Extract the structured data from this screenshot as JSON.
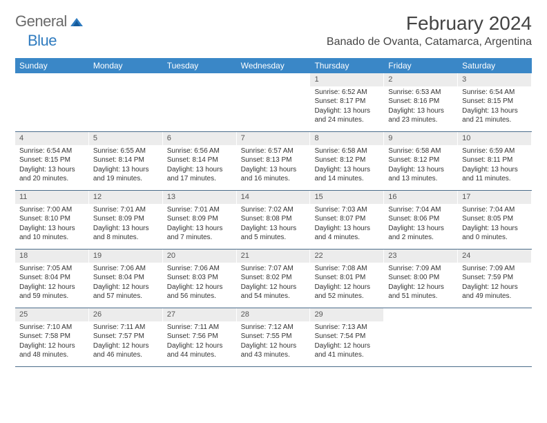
{
  "brand": {
    "general": "General",
    "blue": "Blue"
  },
  "title": "February 2024",
  "location": "Banado de Ovanta, Catamarca, Argentina",
  "colors": {
    "header_bg": "#3a87c7",
    "header_text": "#ffffff",
    "daynum_bg": "#ececec",
    "row_border": "#4a6c8a",
    "brand_gray": "#6a6a6a",
    "brand_blue": "#2f7bbf"
  },
  "weekdays": [
    "Sunday",
    "Monday",
    "Tuesday",
    "Wednesday",
    "Thursday",
    "Friday",
    "Saturday"
  ],
  "weeks": [
    [
      {
        "empty": true
      },
      {
        "empty": true
      },
      {
        "empty": true
      },
      {
        "empty": true
      },
      {
        "day": "1",
        "sunrise": "Sunrise: 6:52 AM",
        "sunset": "Sunset: 8:17 PM",
        "daylight": "Daylight: 13 hours and 24 minutes."
      },
      {
        "day": "2",
        "sunrise": "Sunrise: 6:53 AM",
        "sunset": "Sunset: 8:16 PM",
        "daylight": "Daylight: 13 hours and 23 minutes."
      },
      {
        "day": "3",
        "sunrise": "Sunrise: 6:54 AM",
        "sunset": "Sunset: 8:15 PM",
        "daylight": "Daylight: 13 hours and 21 minutes."
      }
    ],
    [
      {
        "day": "4",
        "sunrise": "Sunrise: 6:54 AM",
        "sunset": "Sunset: 8:15 PM",
        "daylight": "Daylight: 13 hours and 20 minutes."
      },
      {
        "day": "5",
        "sunrise": "Sunrise: 6:55 AM",
        "sunset": "Sunset: 8:14 PM",
        "daylight": "Daylight: 13 hours and 19 minutes."
      },
      {
        "day": "6",
        "sunrise": "Sunrise: 6:56 AM",
        "sunset": "Sunset: 8:14 PM",
        "daylight": "Daylight: 13 hours and 17 minutes."
      },
      {
        "day": "7",
        "sunrise": "Sunrise: 6:57 AM",
        "sunset": "Sunset: 8:13 PM",
        "daylight": "Daylight: 13 hours and 16 minutes."
      },
      {
        "day": "8",
        "sunrise": "Sunrise: 6:58 AM",
        "sunset": "Sunset: 8:12 PM",
        "daylight": "Daylight: 13 hours and 14 minutes."
      },
      {
        "day": "9",
        "sunrise": "Sunrise: 6:58 AM",
        "sunset": "Sunset: 8:12 PM",
        "daylight": "Daylight: 13 hours and 13 minutes."
      },
      {
        "day": "10",
        "sunrise": "Sunrise: 6:59 AM",
        "sunset": "Sunset: 8:11 PM",
        "daylight": "Daylight: 13 hours and 11 minutes."
      }
    ],
    [
      {
        "day": "11",
        "sunrise": "Sunrise: 7:00 AM",
        "sunset": "Sunset: 8:10 PM",
        "daylight": "Daylight: 13 hours and 10 minutes."
      },
      {
        "day": "12",
        "sunrise": "Sunrise: 7:01 AM",
        "sunset": "Sunset: 8:09 PM",
        "daylight": "Daylight: 13 hours and 8 minutes."
      },
      {
        "day": "13",
        "sunrise": "Sunrise: 7:01 AM",
        "sunset": "Sunset: 8:09 PM",
        "daylight": "Daylight: 13 hours and 7 minutes."
      },
      {
        "day": "14",
        "sunrise": "Sunrise: 7:02 AM",
        "sunset": "Sunset: 8:08 PM",
        "daylight": "Daylight: 13 hours and 5 minutes."
      },
      {
        "day": "15",
        "sunrise": "Sunrise: 7:03 AM",
        "sunset": "Sunset: 8:07 PM",
        "daylight": "Daylight: 13 hours and 4 minutes."
      },
      {
        "day": "16",
        "sunrise": "Sunrise: 7:04 AM",
        "sunset": "Sunset: 8:06 PM",
        "daylight": "Daylight: 13 hours and 2 minutes."
      },
      {
        "day": "17",
        "sunrise": "Sunrise: 7:04 AM",
        "sunset": "Sunset: 8:05 PM",
        "daylight": "Daylight: 13 hours and 0 minutes."
      }
    ],
    [
      {
        "day": "18",
        "sunrise": "Sunrise: 7:05 AM",
        "sunset": "Sunset: 8:04 PM",
        "daylight": "Daylight: 12 hours and 59 minutes."
      },
      {
        "day": "19",
        "sunrise": "Sunrise: 7:06 AM",
        "sunset": "Sunset: 8:04 PM",
        "daylight": "Daylight: 12 hours and 57 minutes."
      },
      {
        "day": "20",
        "sunrise": "Sunrise: 7:06 AM",
        "sunset": "Sunset: 8:03 PM",
        "daylight": "Daylight: 12 hours and 56 minutes."
      },
      {
        "day": "21",
        "sunrise": "Sunrise: 7:07 AM",
        "sunset": "Sunset: 8:02 PM",
        "daylight": "Daylight: 12 hours and 54 minutes."
      },
      {
        "day": "22",
        "sunrise": "Sunrise: 7:08 AM",
        "sunset": "Sunset: 8:01 PM",
        "daylight": "Daylight: 12 hours and 52 minutes."
      },
      {
        "day": "23",
        "sunrise": "Sunrise: 7:09 AM",
        "sunset": "Sunset: 8:00 PM",
        "daylight": "Daylight: 12 hours and 51 minutes."
      },
      {
        "day": "24",
        "sunrise": "Sunrise: 7:09 AM",
        "sunset": "Sunset: 7:59 PM",
        "daylight": "Daylight: 12 hours and 49 minutes."
      }
    ],
    [
      {
        "day": "25",
        "sunrise": "Sunrise: 7:10 AM",
        "sunset": "Sunset: 7:58 PM",
        "daylight": "Daylight: 12 hours and 48 minutes."
      },
      {
        "day": "26",
        "sunrise": "Sunrise: 7:11 AM",
        "sunset": "Sunset: 7:57 PM",
        "daylight": "Daylight: 12 hours and 46 minutes."
      },
      {
        "day": "27",
        "sunrise": "Sunrise: 7:11 AM",
        "sunset": "Sunset: 7:56 PM",
        "daylight": "Daylight: 12 hours and 44 minutes."
      },
      {
        "day": "28",
        "sunrise": "Sunrise: 7:12 AM",
        "sunset": "Sunset: 7:55 PM",
        "daylight": "Daylight: 12 hours and 43 minutes."
      },
      {
        "day": "29",
        "sunrise": "Sunrise: 7:13 AM",
        "sunset": "Sunset: 7:54 PM",
        "daylight": "Daylight: 12 hours and 41 minutes."
      },
      {
        "empty": true
      },
      {
        "empty": true
      }
    ]
  ]
}
